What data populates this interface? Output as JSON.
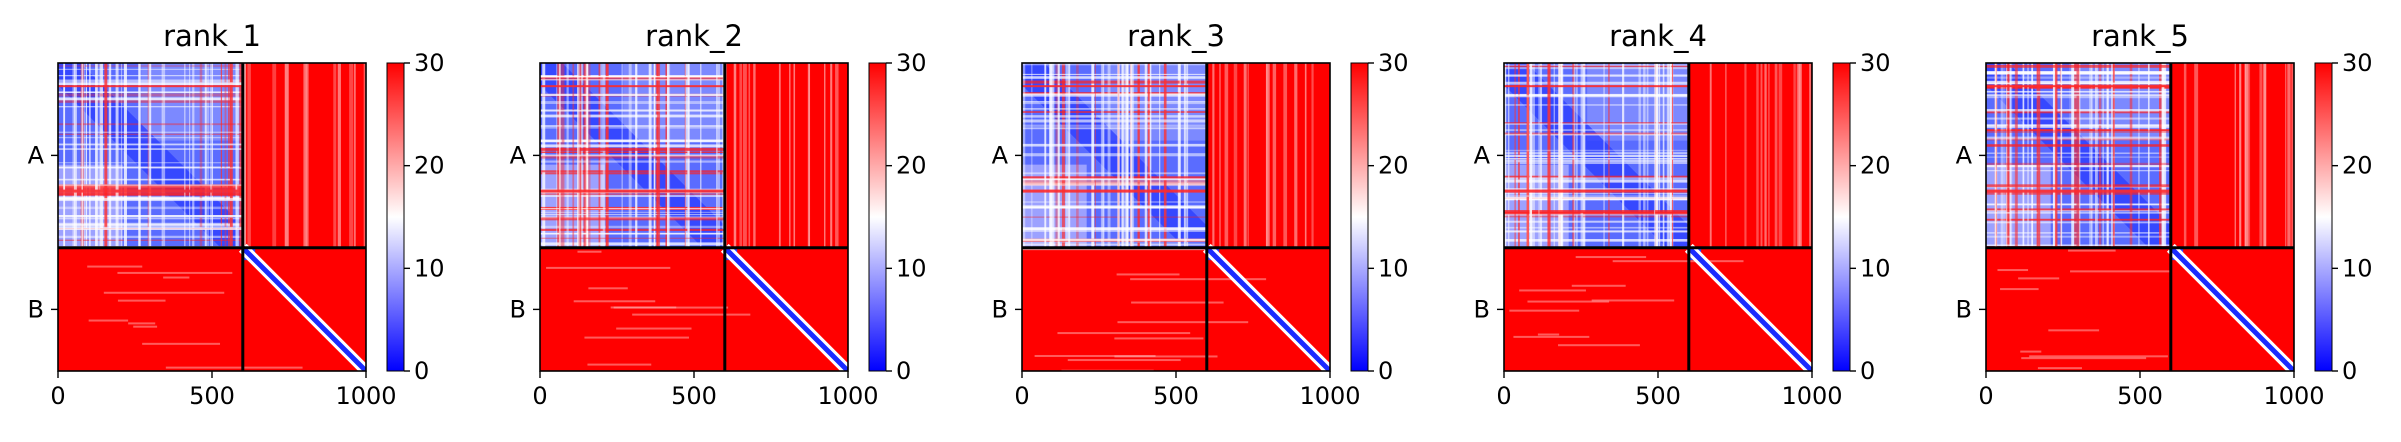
{
  "chart_data": [
    {
      "type": "heatmap",
      "title": "rank_1",
      "xlabel": "",
      "ylabel": "",
      "x_ticks": [
        "0",
        "500",
        "1000"
      ],
      "xlim": [
        0,
        1000
      ],
      "y_ticks": [
        "A",
        "B"
      ],
      "chain_boundary": 600,
      "colorbar": {
        "ticks": [
          "0",
          "10",
          "20",
          "30"
        ],
        "range": [
          0,
          30
        ],
        "colors": [
          "#0000ff",
          "#ffffff",
          "#ff0000"
        ]
      }
    },
    {
      "type": "heatmap",
      "title": "rank_2",
      "xlabel": "",
      "ylabel": "",
      "x_ticks": [
        "0",
        "500",
        "1000"
      ],
      "xlim": [
        0,
        1000
      ],
      "y_ticks": [
        "A",
        "B"
      ],
      "chain_boundary": 600,
      "colorbar": {
        "ticks": [
          "0",
          "10",
          "20",
          "30"
        ],
        "range": [
          0,
          30
        ],
        "colors": [
          "#0000ff",
          "#ffffff",
          "#ff0000"
        ]
      }
    },
    {
      "type": "heatmap",
      "title": "rank_3",
      "xlabel": "",
      "ylabel": "",
      "x_ticks": [
        "0",
        "500",
        "1000"
      ],
      "xlim": [
        0,
        1000
      ],
      "y_ticks": [
        "A",
        "B"
      ],
      "chain_boundary": 600,
      "colorbar": {
        "ticks": [
          "0",
          "10",
          "20",
          "30"
        ],
        "range": [
          0,
          30
        ],
        "colors": [
          "#0000ff",
          "#ffffff",
          "#ff0000"
        ]
      }
    },
    {
      "type": "heatmap",
      "title": "rank_4",
      "xlabel": "",
      "ylabel": "",
      "x_ticks": [
        "0",
        "500",
        "1000"
      ],
      "xlim": [
        0,
        1000
      ],
      "y_ticks": [
        "A",
        "B"
      ],
      "chain_boundary": 600,
      "colorbar": {
        "ticks": [
          "0",
          "10",
          "20",
          "30"
        ],
        "range": [
          0,
          30
        ],
        "colors": [
          "#0000ff",
          "#ffffff",
          "#ff0000"
        ]
      }
    },
    {
      "type": "heatmap",
      "title": "rank_5",
      "xlabel": "",
      "ylabel": "",
      "x_ticks": [
        "0",
        "500",
        "1000"
      ],
      "xlim": [
        0,
        1000
      ],
      "y_ticks": [
        "A",
        "B"
      ],
      "chain_boundary": 600,
      "colorbar": {
        "ticks": [
          "0",
          "10",
          "20",
          "30"
        ],
        "range": [
          0,
          30
        ],
        "colors": [
          "#0000ff",
          "#ffffff",
          "#ff0000"
        ]
      }
    }
  ]
}
